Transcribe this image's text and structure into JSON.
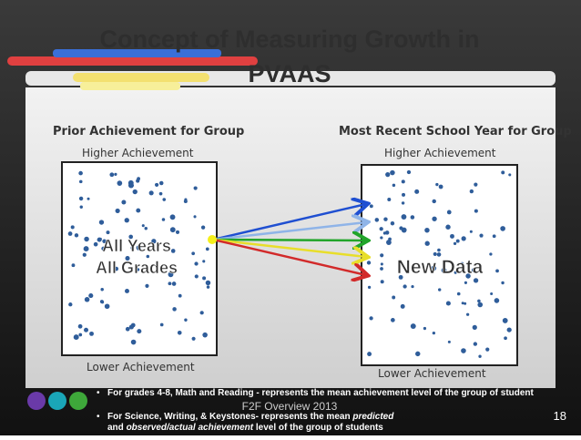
{
  "title_lines": [
    "Concept of Measuring Growth in",
    "PVAAS"
  ],
  "left": {
    "heading": "Prior Achievement for Group",
    "top": "Higher Achievement",
    "bottom": "Lower Achievement",
    "label_lines": [
      "All Years",
      "All Grades"
    ]
  },
  "right": {
    "heading": "Most Recent School Year for Group",
    "top": "Higher Achievement",
    "bottom": "Lower Achievement",
    "label": "New Data"
  },
  "bullets": [
    [
      {
        "text": "For grades 4-8, Math and Reading - represents the mean achievement level of the group of student",
        "style": "bold"
      }
    ],
    [
      {
        "text": "For Science, Writing, & Keystones- represents the mean ",
        "style": "bold"
      },
      {
        "text": "predicted",
        "style": "bold-italic"
      },
      {
        "text": " and ",
        "style": "bold"
      },
      {
        "text": "observed/actual achievement",
        "style": "bold-italic"
      },
      {
        "text": " level of the group of students",
        "style": "bold"
      }
    ]
  ],
  "footer": "F2F Overview 2013",
  "page_number": "18"
}
